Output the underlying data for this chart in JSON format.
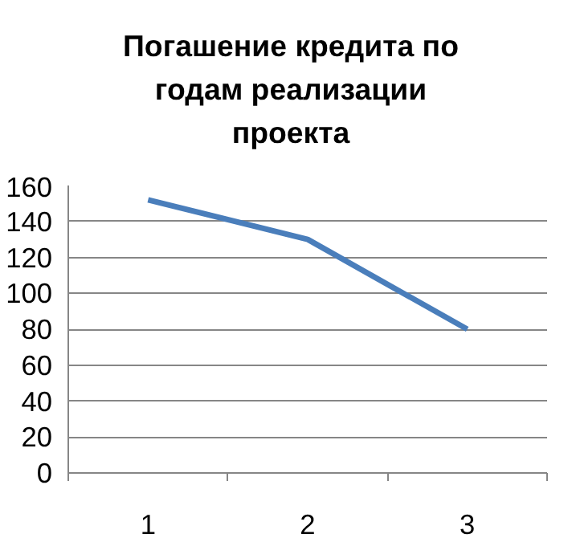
{
  "chart_data": {
    "type": "line",
    "title": "Погашение кредита по годам реализации проекта",
    "categories": [
      "1",
      "2",
      "3"
    ],
    "series": [
      {
        "color": "#4a7ebb",
        "values": [
          152,
          130,
          80
        ]
      }
    ],
    "ylim": [
      0,
      160
    ],
    "yticks": [
      0,
      20,
      40,
      60,
      80,
      100,
      120,
      140,
      160
    ],
    "grid": "y"
  }
}
